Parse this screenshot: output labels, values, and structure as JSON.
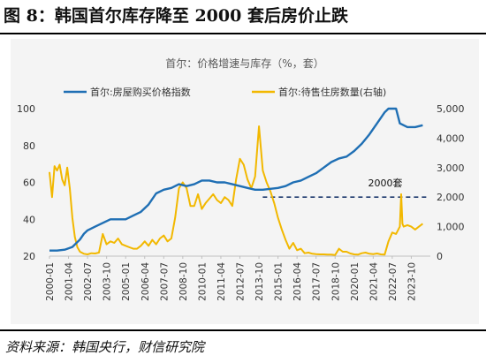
{
  "figure": {
    "title": "图 8：韩国首尔库存降至 2000 套后房价止跌",
    "source": "资料来源：韩国央行，财信研究院"
  },
  "chart_data": {
    "type": "line",
    "title": "首尔：价格增速与库存（%，套）",
    "annotation": "2000套",
    "x_tick_labels": [
      "2000-01",
      "2001-04",
      "2002-07",
      "2003-10",
      "2005-01",
      "2006-04",
      "2007-07",
      "2008-10",
      "2010-01",
      "2011-04",
      "2012-07",
      "2013-10",
      "2015-01",
      "2016-04",
      "2017-07",
      "2018-10",
      "2020-01",
      "2021-04",
      "2022-07",
      "2023-10"
    ],
    "y_left": {
      "ylim": [
        20,
        100
      ],
      "ticks": [
        "20",
        "40",
        "60",
        "80",
        "100"
      ]
    },
    "y_right": {
      "ylim": [
        0,
        5000
      ],
      "ticks": [
        "0",
        "1,000",
        "2,000",
        "3,000",
        "4,000",
        "5,000"
      ]
    },
    "reference_line": {
      "axis": "right",
      "value": 2000,
      "from": "2014-01",
      "to": "2024-12"
    },
    "legend": "top",
    "series": [
      {
        "name": "首尔:房屋购买价格指数",
        "axis": "left",
        "color": "#1f6fb4",
        "points": [
          [
            "2000-01",
            23
          ],
          [
            "2000-07",
            23
          ],
          [
            "2001-01",
            23.5
          ],
          [
            "2001-07",
            25
          ],
          [
            "2002-01",
            29
          ],
          [
            "2002-04",
            32
          ],
          [
            "2002-07",
            34
          ],
          [
            "2003-01",
            36
          ],
          [
            "2003-07",
            38
          ],
          [
            "2004-01",
            40
          ],
          [
            "2004-07",
            40
          ],
          [
            "2005-01",
            40
          ],
          [
            "2005-07",
            42
          ],
          [
            "2006-01",
            44
          ],
          [
            "2006-07",
            48
          ],
          [
            "2007-01",
            54
          ],
          [
            "2007-07",
            56
          ],
          [
            "2008-01",
            57
          ],
          [
            "2008-07",
            59
          ],
          [
            "2009-01",
            58
          ],
          [
            "2009-07",
            59
          ],
          [
            "2010-01",
            61
          ],
          [
            "2010-07",
            61
          ],
          [
            "2011-01",
            60
          ],
          [
            "2011-07",
            60
          ],
          [
            "2012-01",
            59
          ],
          [
            "2012-07",
            58
          ],
          [
            "2013-01",
            57
          ],
          [
            "2013-07",
            56
          ],
          [
            "2014-01",
            56
          ],
          [
            "2014-07",
            56.5
          ],
          [
            "2015-01",
            57
          ],
          [
            "2015-07",
            58
          ],
          [
            "2016-01",
            60
          ],
          [
            "2016-07",
            61
          ],
          [
            "2017-01",
            63
          ],
          [
            "2017-07",
            65
          ],
          [
            "2018-01",
            68
          ],
          [
            "2018-07",
            71
          ],
          [
            "2019-01",
            73
          ],
          [
            "2019-07",
            74
          ],
          [
            "2020-01",
            77
          ],
          [
            "2020-07",
            81
          ],
          [
            "2021-01",
            86
          ],
          [
            "2021-07",
            92
          ],
          [
            "2022-01",
            98
          ],
          [
            "2022-04",
            100
          ],
          [
            "2022-10",
            100
          ],
          [
            "2023-01",
            92
          ],
          [
            "2023-07",
            90
          ],
          [
            "2024-01",
            90
          ],
          [
            "2024-07",
            91
          ]
        ]
      },
      {
        "name": "首尔:待售住房数量(右轴)",
        "axis": "right",
        "color": "#f2b800",
        "points": [
          [
            "2000-01",
            2850
          ],
          [
            "2000-03",
            2000
          ],
          [
            "2000-05",
            3050
          ],
          [
            "2000-07",
            2900
          ],
          [
            "2000-09",
            3100
          ],
          [
            "2000-11",
            2600
          ],
          [
            "2001-01",
            2400
          ],
          [
            "2001-03",
            3000
          ],
          [
            "2001-05",
            2300
          ],
          [
            "2001-07",
            1300
          ],
          [
            "2001-09",
            650
          ],
          [
            "2001-11",
            300
          ],
          [
            "2002-01",
            150
          ],
          [
            "2002-04",
            80
          ],
          [
            "2002-07",
            60
          ],
          [
            "2002-10",
            100
          ],
          [
            "2003-01",
            90
          ],
          [
            "2003-04",
            120
          ],
          [
            "2003-07",
            750
          ],
          [
            "2003-10",
            400
          ],
          [
            "2004-01",
            500
          ],
          [
            "2004-04",
            450
          ],
          [
            "2004-07",
            600
          ],
          [
            "2004-10",
            400
          ],
          [
            "2005-01",
            350
          ],
          [
            "2005-04",
            300
          ],
          [
            "2005-07",
            250
          ],
          [
            "2005-10",
            250
          ],
          [
            "2006-01",
            350
          ],
          [
            "2006-04",
            500
          ],
          [
            "2006-07",
            350
          ],
          [
            "2006-10",
            550
          ],
          [
            "2007-01",
            400
          ],
          [
            "2007-04",
            600
          ],
          [
            "2007-07",
            700
          ],
          [
            "2007-10",
            500
          ],
          [
            "2008-01",
            600
          ],
          [
            "2008-04",
            1300
          ],
          [
            "2008-07",
            2300
          ],
          [
            "2008-10",
            2500
          ],
          [
            "2009-01",
            2300
          ],
          [
            "2009-04",
            1700
          ],
          [
            "2009-07",
            1700
          ],
          [
            "2009-10",
            2100
          ],
          [
            "2010-01",
            1600
          ],
          [
            "2010-04",
            1800
          ],
          [
            "2010-07",
            1950
          ],
          [
            "2010-10",
            2100
          ],
          [
            "2011-01",
            1900
          ],
          [
            "2011-04",
            1800
          ],
          [
            "2011-07",
            2000
          ],
          [
            "2011-10",
            1900
          ],
          [
            "2012-01",
            1700
          ],
          [
            "2012-04",
            2600
          ],
          [
            "2012-07",
            3300
          ],
          [
            "2012-10",
            3100
          ],
          [
            "2013-01",
            2600
          ],
          [
            "2013-04",
            2300
          ],
          [
            "2013-07",
            2700
          ],
          [
            "2013-10",
            4400
          ],
          [
            "2014-01",
            2900
          ],
          [
            "2014-04",
            2500
          ],
          [
            "2014-07",
            2200
          ],
          [
            "2014-10",
            1800
          ],
          [
            "2015-01",
            1300
          ],
          [
            "2015-04",
            900
          ],
          [
            "2015-07",
            550
          ],
          [
            "2015-10",
            250
          ],
          [
            "2016-01",
            450
          ],
          [
            "2016-04",
            200
          ],
          [
            "2016-07",
            250
          ],
          [
            "2016-10",
            100
          ],
          [
            "2017-01",
            120
          ],
          [
            "2017-04",
            80
          ],
          [
            "2017-07",
            70
          ],
          [
            "2017-10",
            60
          ],
          [
            "2018-01",
            60
          ],
          [
            "2018-04",
            50
          ],
          [
            "2018-07",
            50
          ],
          [
            "2018-10",
            40
          ],
          [
            "2019-01",
            250
          ],
          [
            "2019-04",
            150
          ],
          [
            "2019-07",
            150
          ],
          [
            "2019-10",
            90
          ],
          [
            "2020-01",
            60
          ],
          [
            "2020-04",
            50
          ],
          [
            "2020-07",
            100
          ],
          [
            "2020-10",
            120
          ],
          [
            "2021-01",
            80
          ],
          [
            "2021-04",
            70
          ],
          [
            "2021-07",
            90
          ],
          [
            "2021-10",
            60
          ],
          [
            "2022-01",
            50
          ],
          [
            "2022-04",
            500
          ],
          [
            "2022-07",
            800
          ],
          [
            "2022-10",
            750
          ],
          [
            "2023-01",
            1000
          ],
          [
            "2023-02",
            2100
          ],
          [
            "2023-03",
            1100
          ],
          [
            "2023-04",
            1000
          ],
          [
            "2023-07",
            1050
          ],
          [
            "2023-10",
            1000
          ],
          [
            "2024-01",
            900
          ],
          [
            "2024-04",
            1000
          ],
          [
            "2024-07",
            1100
          ]
        ]
      }
    ]
  }
}
